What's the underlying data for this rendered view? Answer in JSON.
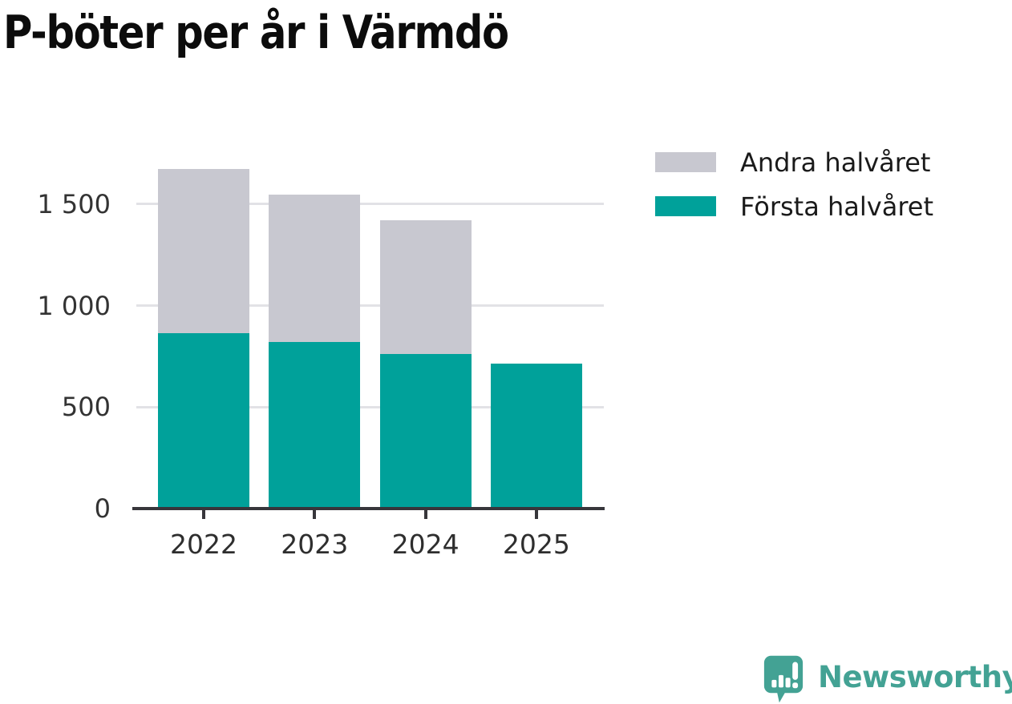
{
  "title": "P-böter per år i Värmdö",
  "chart_data": {
    "type": "bar",
    "stacked": true,
    "title": "P-böter per år i Värmdö",
    "xlabel": "",
    "ylabel": "",
    "categories": [
      "2022",
      "2023",
      "2024",
      "2025"
    ],
    "series": [
      {
        "name": "Första halvåret",
        "color": "#00a19a",
        "values": [
          865,
          820,
          760,
          715
        ]
      },
      {
        "name": "Andra halvåret",
        "color": "#c8c8d0",
        "values": [
          810,
          725,
          660,
          0
        ]
      }
    ],
    "totals": [
      1675,
      1545,
      1420,
      715
    ],
    "ylim": [
      0,
      1955
    ],
    "yticks": [
      {
        "value": 0,
        "label": "0"
      },
      {
        "value": 500,
        "label": "500"
      },
      {
        "value": 1000,
        "label": "1 000"
      },
      {
        "value": 1500,
        "label": "1 500"
      }
    ],
    "grid": "horizontal",
    "legend_position": "top-right"
  },
  "legend": {
    "items": [
      {
        "label": "Andra halvåret",
        "color": "#c8c8d0"
      },
      {
        "label": "Första halvåret",
        "color": "#00a19a"
      }
    ]
  },
  "branding": {
    "logo_text": "Newsworthy",
    "logo_color": "#43a294",
    "logo_icon": "newsworthy-speech-bubble-bar-chart-icon"
  },
  "colors": {
    "background": "#ffffff",
    "axis": "#37363b",
    "gridline": "#e2e2e6",
    "tick_label": "#333333",
    "title_text": "#0c0c0c"
  }
}
